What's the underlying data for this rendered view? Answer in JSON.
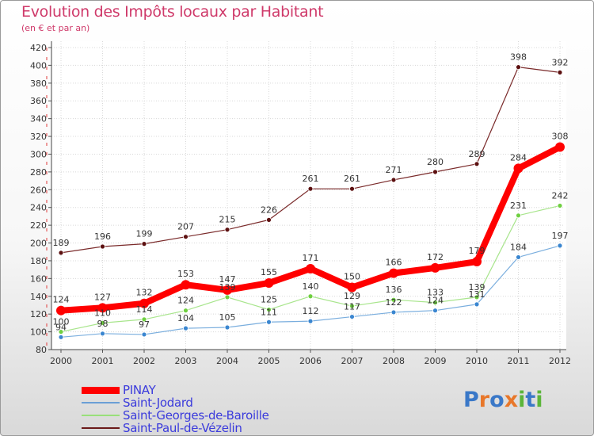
{
  "header": {
    "title": "Evolution des Impôts locaux par Habitant",
    "subtitle": "(en € et par an)"
  },
  "chart_data": {
    "type": "line",
    "title": "Evolution des Impôts locaux par Habitant",
    "subtitle": "(en € et par an)",
    "xlabel": "",
    "ylabel": "",
    "x": [
      "2000",
      "2001",
      "2002",
      "2003",
      "2004",
      "2005",
      "2006",
      "2007",
      "2008",
      "2009",
      "2010",
      "2011",
      "2012"
    ],
    "ylim": [
      80,
      420
    ],
    "yticks": [
      80,
      100,
      120,
      140,
      160,
      180,
      200,
      220,
      240,
      260,
      280,
      300,
      320,
      340,
      360,
      380,
      400,
      420
    ],
    "grid": true,
    "legend_position": "bottom-left",
    "series": [
      {
        "name": "Saint-Paul-de-Vézelin",
        "color": "#6b1a1a",
        "values": [
          189,
          196,
          199,
          207,
          215,
          226,
          261,
          261,
          271,
          280,
          289,
          398,
          392
        ]
      },
      {
        "name": "Saint-Georges-de-Baroille",
        "color": "#99e07a",
        "values": [
          100,
          110,
          114,
          124,
          139,
          125,
          140,
          129,
          136,
          133,
          139,
          231,
          242
        ]
      },
      {
        "name": "Saint-Jodard",
        "color": "#6b9fd6",
        "values": [
          94,
          98,
          97,
          104,
          105,
          111,
          112,
          117,
          122,
          124,
          131,
          184,
          197
        ]
      },
      {
        "name": "PINAY",
        "color": "#ff0000",
        "values": [
          124,
          127,
          132,
          153,
          147,
          155,
          171,
          150,
          166,
          172,
          179,
          284,
          308
        ]
      }
    ]
  },
  "legend": {
    "items": [
      {
        "label": "PINAY",
        "color": "#ff0000"
      },
      {
        "label": "Saint-Jodard",
        "color": "#6b9fd6"
      },
      {
        "label": "Saint-Georges-de-Baroille",
        "color": "#99e07a"
      },
      {
        "label": "Saint-Paul-de-Vézelin",
        "color": "#6b1a1a"
      }
    ]
  },
  "logo": {
    "text": "Proxiti",
    "letters": [
      {
        "char": "P",
        "color": "#3a78c8"
      },
      {
        "char": "r",
        "color": "#e8772a"
      },
      {
        "char": "o",
        "color": "#3a78c8"
      },
      {
        "char": "x",
        "color": "#e8772a"
      },
      {
        "char": "i",
        "color": "#5bb53a"
      },
      {
        "char": "t",
        "color": "#3a78c8"
      },
      {
        "char": "i",
        "color": "#5bb53a"
      }
    ]
  }
}
